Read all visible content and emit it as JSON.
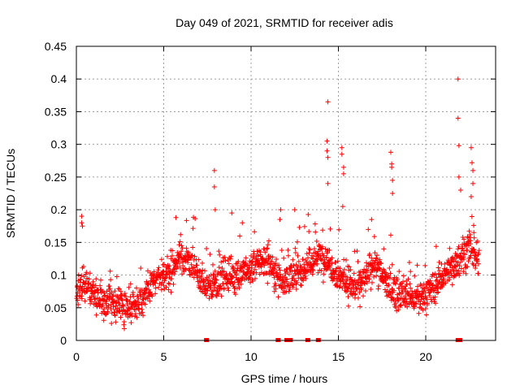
{
  "chart_data": {
    "type": "scatter",
    "title": "Day 049 of 2021, SRMTID for receiver adis",
    "xlabel": "GPS time / hours",
    "ylabel": "SRMTID / TECUs",
    "xlim": [
      0,
      24
    ],
    "ylim": [
      0,
      0.45
    ],
    "x_ticks": [
      0,
      5,
      10,
      15,
      20
    ],
    "x_tick_labels": [
      "0",
      "5",
      "10",
      "15",
      "20"
    ],
    "y_ticks": [
      0,
      0.05,
      0.1,
      0.15,
      0.2,
      0.25,
      0.3,
      0.35,
      0.4,
      0.45
    ],
    "y_tick_labels": [
      "0",
      "0.05",
      "0.1",
      "0.15",
      "0.2",
      "0.25",
      "0.3",
      "0.35",
      "0.4",
      "0.45"
    ],
    "grid": true,
    "marker": "+",
    "color": "#ff0000",
    "trend": {
      "description": "approximate center of the dense point cloud by hour",
      "x": [
        0,
        0.5,
        1,
        1.5,
        2,
        2.5,
        3,
        3.5,
        4,
        4.5,
        5,
        5.5,
        6,
        6.5,
        7,
        7.5,
        8,
        8.5,
        9,
        9.5,
        10,
        10.5,
        11,
        11.5,
        12,
        12.5,
        13,
        13.5,
        14,
        14.5,
        15,
        15.5,
        16,
        16.5,
        17,
        17.5,
        18,
        18.5,
        19,
        19.5,
        20,
        20.5,
        21,
        21.5,
        22,
        22.5,
        23
      ],
      "y": [
        0.07,
        0.09,
        0.07,
        0.06,
        0.06,
        0.05,
        0.05,
        0.06,
        0.07,
        0.09,
        0.1,
        0.11,
        0.13,
        0.12,
        0.1,
        0.08,
        0.09,
        0.1,
        0.1,
        0.1,
        0.11,
        0.12,
        0.12,
        0.1,
        0.09,
        0.1,
        0.11,
        0.12,
        0.13,
        0.12,
        0.1,
        0.09,
        0.08,
        0.09,
        0.12,
        0.1,
        0.08,
        0.07,
        0.07,
        0.06,
        0.07,
        0.08,
        0.1,
        0.11,
        0.13,
        0.14,
        0.12
      ]
    },
    "spread": 0.025,
    "outliers": [
      {
        "x": 0.3,
        "y": 0.19
      },
      {
        "x": 0.3,
        "y": 0.18
      },
      {
        "x": 0.35,
        "y": 0.175
      },
      {
        "x": 7.9,
        "y": 0.26
      },
      {
        "x": 7.9,
        "y": 0.235
      },
      {
        "x": 7.95,
        "y": 0.2
      },
      {
        "x": 14.4,
        "y": 0.365
      },
      {
        "x": 14.35,
        "y": 0.305
      },
      {
        "x": 14.35,
        "y": 0.29
      },
      {
        "x": 14.4,
        "y": 0.28
      },
      {
        "x": 14.4,
        "y": 0.24
      },
      {
        "x": 15.2,
        "y": 0.295
      },
      {
        "x": 15.2,
        "y": 0.285
      },
      {
        "x": 15.3,
        "y": 0.265
      },
      {
        "x": 15.3,
        "y": 0.255
      },
      {
        "x": 15.25,
        "y": 0.205
      },
      {
        "x": 18.0,
        "y": 0.288
      },
      {
        "x": 18.05,
        "y": 0.27
      },
      {
        "x": 18.05,
        "y": 0.265
      },
      {
        "x": 18.1,
        "y": 0.245
      },
      {
        "x": 18.1,
        "y": 0.225
      },
      {
        "x": 21.85,
        "y": 0.4
      },
      {
        "x": 21.85,
        "y": 0.34
      },
      {
        "x": 21.9,
        "y": 0.298
      },
      {
        "x": 21.9,
        "y": 0.25
      },
      {
        "x": 22.0,
        "y": 0.23
      },
      {
        "x": 22.6,
        "y": 0.295
      },
      {
        "x": 22.65,
        "y": 0.272
      },
      {
        "x": 22.7,
        "y": 0.26
      },
      {
        "x": 22.7,
        "y": 0.24
      },
      {
        "x": 22.6,
        "y": 0.22
      },
      {
        "x": 11.7,
        "y": 0.2
      },
      {
        "x": 11.65,
        "y": 0.185
      },
      {
        "x": 5.7,
        "y": 0.188
      },
      {
        "x": 9.5,
        "y": 0.18
      },
      {
        "x": 12.5,
        "y": 0.2
      },
      {
        "x": 8.9,
        "y": 0.195
      },
      {
        "x": 16.9,
        "y": 0.185
      }
    ],
    "zero_markers_x": [
      7.45,
      11.55,
      12.05,
      12.25,
      13.25,
      13.85,
      21.85,
      21.95
    ]
  }
}
